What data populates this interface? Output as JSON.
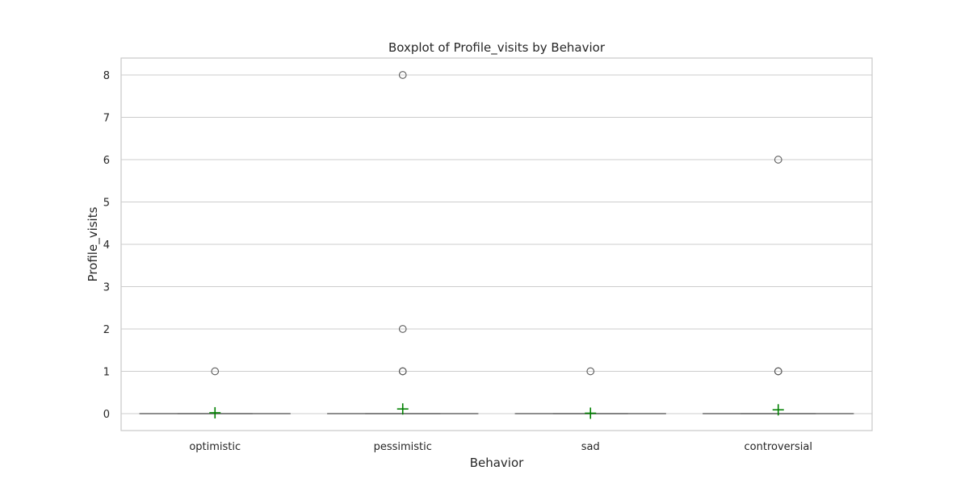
{
  "chart_data": {
    "type": "box",
    "title": "Boxplot of Profile_visits by Behavior",
    "xlabel": "Behavior",
    "ylabel": "Profile_visits",
    "categories": [
      "optimistic",
      "pessimistic",
      "sad",
      "controversial"
    ],
    "ylim": [
      -0.4,
      8.4
    ],
    "yticks": [
      0,
      1,
      2,
      3,
      4,
      5,
      6,
      7,
      8
    ],
    "grid": true,
    "boxes": [
      {
        "category": "optimistic",
        "min": 0,
        "q1": 0,
        "median": 0,
        "q3": 0,
        "max": 0,
        "mean": 0.02,
        "outliers": [
          1
        ]
      },
      {
        "category": "pessimistic",
        "min": 0,
        "q1": 0,
        "median": 0,
        "q3": 0,
        "max": 0,
        "mean": 0.11,
        "outliers": [
          1,
          1,
          2,
          8
        ]
      },
      {
        "category": "sad",
        "min": 0,
        "q1": 0,
        "median": 0,
        "q3": 0,
        "max": 0,
        "mean": 0.01,
        "outliers": [
          1
        ]
      },
      {
        "category": "controversial",
        "min": 0,
        "q1": 0,
        "median": 0,
        "q3": 0,
        "max": 0,
        "mean": 0.09,
        "outliers": [
          1,
          1,
          6
        ]
      }
    ],
    "colors": {
      "box_line": "#7f7f7f",
      "mean_marker": "#008000",
      "grid": "#cccccc",
      "frame": "#cccccc",
      "text": "#262626"
    }
  }
}
